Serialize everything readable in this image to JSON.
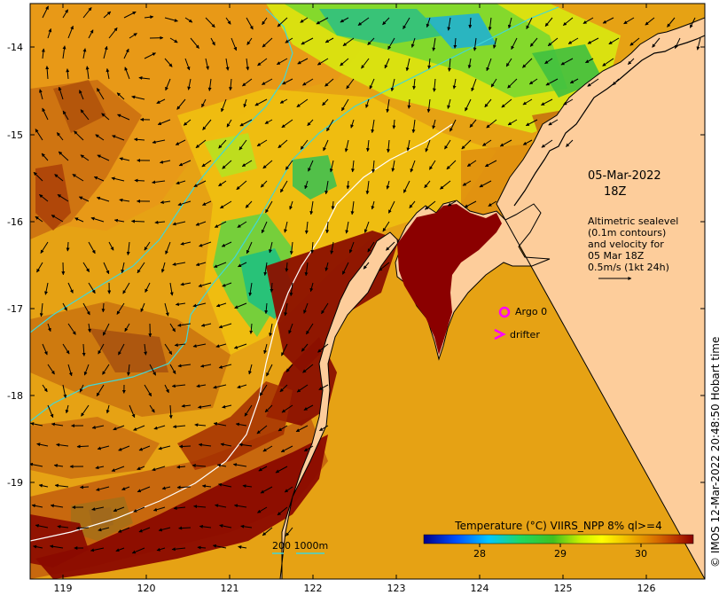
{
  "map": {
    "lon_ticks": [
      "119",
      "120",
      "121",
      "122",
      "123",
      "124",
      "125",
      "126"
    ],
    "lat_ticks": [
      "-14",
      "-15",
      "-16",
      "-17",
      "-18",
      "-19"
    ],
    "lon_range": [
      118.65,
      126.7
    ],
    "lat_range": [
      -20.1,
      -13.55
    ]
  },
  "annotations": {
    "date_line1": "05-Mar-2022",
    "date_line2": "18Z",
    "altimetry_lines": [
      "Altimetric sealevel",
      "(0.1m contours)",
      "and velocity for",
      "05 Mar 18Z",
      "0.5m/s (1kt 24h)"
    ],
    "argo_label": "Argo 0",
    "drifter_label": "drifter",
    "bathymetry_scale": "200  1000m"
  },
  "colorbar": {
    "title": "Temperature (°C) VIIRS_NPP 8% ql>=4",
    "ticks": [
      "28",
      "29",
      "30"
    ],
    "range": [
      27.3,
      30.6
    ]
  },
  "credit": "© IMOS 12-Mar-2022 20:48:50 Hobart time",
  "colors": {
    "land": "#fdcd9b",
    "argo": "#ff00ff",
    "drifter": "#ff00ff",
    "bathymetry_200m": "#40d8d8",
    "bathymetry_1000m": "#ffffff"
  }
}
